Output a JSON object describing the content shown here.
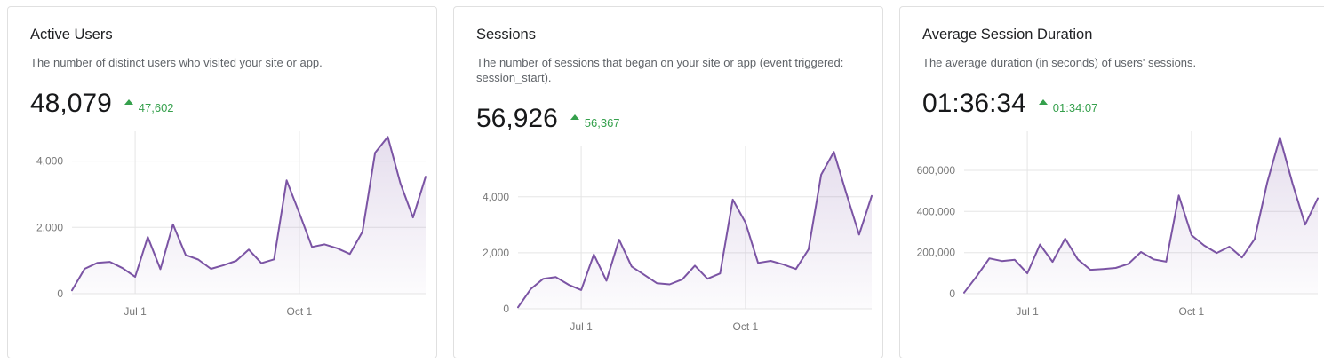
{
  "colors": {
    "line": "#7b54a4",
    "grid": "#e5e5e5",
    "tick": "#787878",
    "title": "#202124",
    "desc": "#5f6368",
    "value": "#17181a",
    "positive": "#35a04c",
    "border": "#e0e0e0"
  },
  "cards": [
    {
      "title": "Active Users",
      "description": "The number of distinct users who visited your site or app.",
      "value": "48,079",
      "delta_direction": "up",
      "delta_value": "47,602"
    },
    {
      "title": "Sessions",
      "description": "The number of sessions that began on your site or app (event triggered: session_start).",
      "value": "56,926",
      "delta_direction": "up",
      "delta_value": "56,367"
    },
    {
      "title": "Average Session Duration",
      "description": "The average duration (in seconds) of users' sessions.",
      "value": "01:36:34",
      "delta_direction": "up",
      "delta_value": "01:34:07"
    }
  ],
  "chart_data": [
    {
      "type": "area",
      "metric": "Active Users",
      "grid": true,
      "legend": false,
      "values": [
        100,
        750,
        930,
        960,
        770,
        510,
        1710,
        740,
        2090,
        1170,
        1030,
        750,
        860,
        990,
        1330,
        920,
        1035,
        3420,
        2430,
        1410,
        1490,
        1370,
        1200,
        1865,
        4250,
        4730,
        3330,
        2300,
        3530
      ],
      "x_ticks": [
        {
          "index": 5,
          "label": "Jul 1"
        },
        {
          "index": 18,
          "label": "Oct 1"
        }
      ],
      "y_ticks": [
        {
          "value": 0,
          "label": "0"
        },
        {
          "value": 2000,
          "label": "2,000"
        },
        {
          "value": 4000,
          "label": "4,000"
        }
      ],
      "y_max_render": 4900
    },
    {
      "type": "area",
      "metric": "Sessions",
      "grid": true,
      "legend": false,
      "values": [
        55,
        700,
        1070,
        1130,
        860,
        670,
        1940,
        1000,
        2470,
        1510,
        1210,
        910,
        870,
        1050,
        1540,
        1070,
        1260,
        3900,
        3080,
        1640,
        1710,
        1580,
        1420,
        2120,
        4790,
        5600,
        4100,
        2650,
        4030
      ],
      "x_ticks": [
        {
          "index": 5,
          "label": "Jul 1"
        },
        {
          "index": 18,
          "label": "Oct 1"
        }
      ],
      "y_ticks": [
        {
          "value": 0,
          "label": "0"
        },
        {
          "value": 2000,
          "label": "2,000"
        },
        {
          "value": 4000,
          "label": "4,000"
        }
      ],
      "y_max_render": 5800
    },
    {
      "type": "area",
      "metric": "Average Session Duration",
      "grid": true,
      "legend": false,
      "values": [
        5000,
        85000,
        172000,
        159000,
        165000,
        99000,
        239000,
        155000,
        268000,
        167000,
        116000,
        120000,
        125000,
        145000,
        203000,
        167000,
        156000,
        478000,
        285000,
        235000,
        198000,
        229000,
        176000,
        265000,
        540000,
        760000,
        536000,
        336000,
        464000
      ],
      "x_ticks": [
        {
          "index": 5,
          "label": "Jul 1"
        },
        {
          "index": 18,
          "label": "Oct 1"
        }
      ],
      "y_ticks": [
        {
          "value": 0,
          "label": "0"
        },
        {
          "value": 200000,
          "label": "200,000"
        },
        {
          "value": 400000,
          "label": "400,000"
        },
        {
          "value": 600000,
          "label": "600,000"
        }
      ],
      "y_max_render": 790000
    }
  ]
}
